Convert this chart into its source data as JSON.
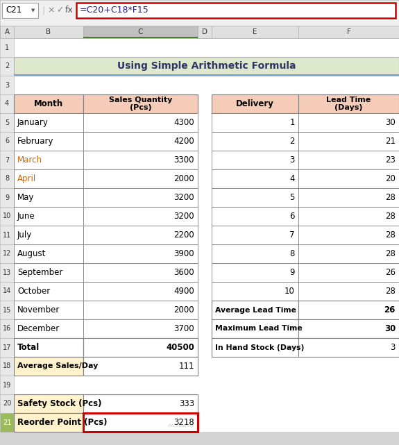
{
  "title": "Using Simple Arithmetic Formula",
  "title_bg": "#dde8cc",
  "title_border": "#9bba59",
  "formula_bar_text": "=C20+C18*F15",
  "cell_ref": "C21",
  "months": [
    "January",
    "February",
    "March",
    "April",
    "May",
    "June",
    "July",
    "August",
    "September",
    "October",
    "November",
    "December"
  ],
  "sales": [
    4300,
    4200,
    3300,
    2000,
    3200,
    3200,
    2200,
    3900,
    3600,
    4900,
    2000,
    3700
  ],
  "deliveries": [
    1,
    2,
    3,
    4,
    5,
    6,
    7,
    8,
    9,
    10
  ],
  "lead_times": [
    30,
    21,
    23,
    20,
    28,
    28,
    28,
    28,
    26,
    28
  ],
  "total": 40500,
  "avg_sales_day": 111,
  "avg_lead_time": 26,
  "max_lead_time": 30,
  "in_hand_stock": 3,
  "safety_stock": 333,
  "reorder_point": 3218,
  "header_bg": "#f4ccb8",
  "avg_row_bg": "#fff2cc",
  "white": "#ffffff",
  "black": "#000000",
  "border_color": "#7f7f7f",
  "formula_border": "#cc0000",
  "title_row_bg": "#dde8cc",
  "march_april_color": "#cc6600",
  "col_header_bg": "#e0e0e0",
  "col_header_selected_bg": "#c0c0c0",
  "row_header_bg": "#e8e8e8",
  "row_header_selected_bg": "#9bba59",
  "formula_bar_bg": "#f0f0f0",
  "chrome_bg": "#f0f0f0"
}
